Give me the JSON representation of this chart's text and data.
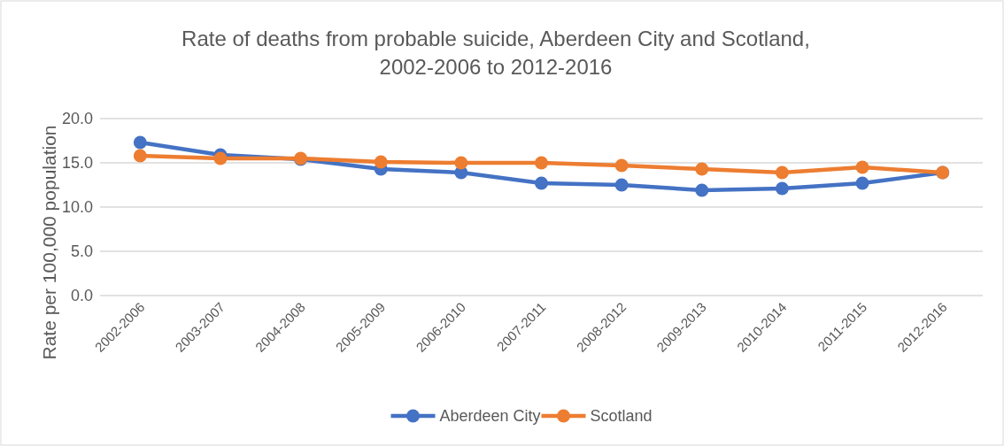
{
  "chart_data": {
    "type": "line",
    "title": "Rate of deaths from probable suicide, Aberdeen City and Scotland, 2002-2006 to 2012-2016",
    "ylabel": "Rate per 100,000 population",
    "categories": [
      "2002-2006",
      "2003-2007",
      "2004-2008",
      "2005-2009",
      "2006-2010",
      "2007-2011",
      "2008-2012",
      "2009-2013",
      "2010-2014",
      "2011-2015",
      "2012-2016"
    ],
    "series": [
      {
        "name": "Aberdeen City",
        "color": "#4472c4",
        "values": [
          17.3,
          15.9,
          15.4,
          14.3,
          13.9,
          12.7,
          12.5,
          11.9,
          12.1,
          12.7,
          13.9
        ]
      },
      {
        "name": "Scotland",
        "color": "#ed7d31",
        "values": [
          15.8,
          15.5,
          15.5,
          15.1,
          15.0,
          15.0,
          14.7,
          14.3,
          13.9,
          14.5,
          13.9
        ]
      }
    ],
    "ylim": [
      0,
      20
    ],
    "yticks": [
      {
        "value": 0,
        "label": "0.0"
      },
      {
        "value": 5,
        "label": "5.0"
      },
      {
        "value": 10,
        "label": "10.0"
      },
      {
        "value": 15,
        "label": "15.0"
      },
      {
        "value": 20,
        "label": "20.0"
      }
    ],
    "grid": "y",
    "legend": "bottom",
    "marker": "circle"
  }
}
